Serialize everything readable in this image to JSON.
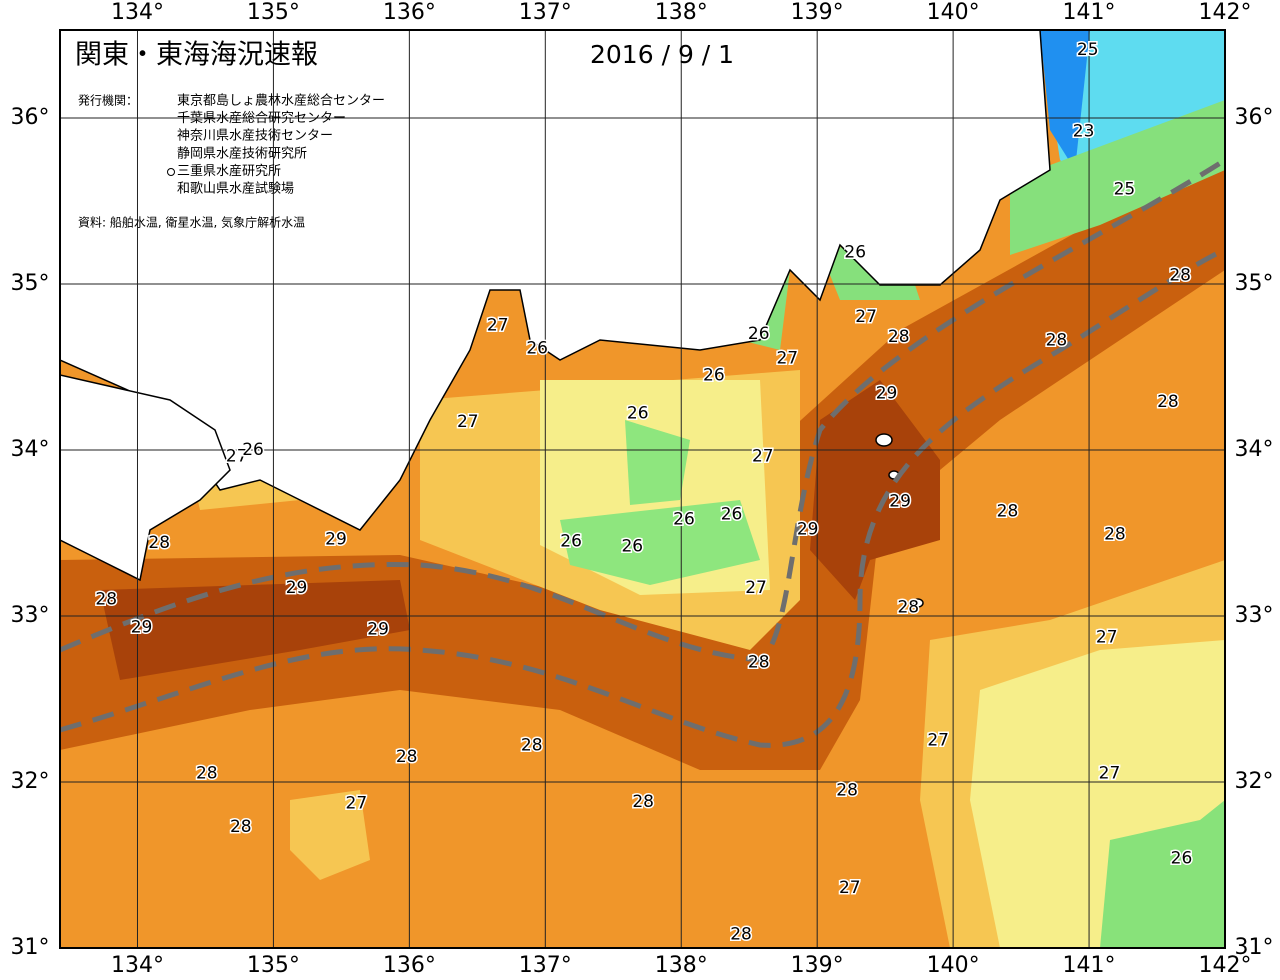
{
  "header": {
    "title": "関東・東海海況速報",
    "date": "2016 / 9 / 1",
    "publisher_label": "発行機関：",
    "publishers": [
      "東京都島しょ農林水産総合センター",
      "千葉県水産総合研究センター",
      "神奈川県水産技術センター",
      "静岡県水産技術研究所",
      "三重県水産研究所",
      "和歌山県水産試験場"
    ],
    "source": "資料: 船舶水温, 衛星水温, 気象庁解析水温"
  },
  "map": {
    "lon_range": [
      133.43,
      142
    ],
    "lat_range": [
      31,
      36.53
    ],
    "lon_ticks": [
      {
        "value": 134,
        "label": "134°"
      },
      {
        "value": 135,
        "label": "135°"
      },
      {
        "value": 136,
        "label": "136°"
      },
      {
        "value": 137,
        "label": "137°"
      },
      {
        "value": 138,
        "label": "138°"
      },
      {
        "value": 139,
        "label": "139°"
      },
      {
        "value": 140,
        "label": "140°"
      },
      {
        "value": 141,
        "label": "141°"
      },
      {
        "value": 142,
        "label": "142°"
      }
    ],
    "lat_ticks": [
      {
        "value": 31,
        "label": "31°"
      },
      {
        "value": 32,
        "label": "32°"
      },
      {
        "value": 33,
        "label": "33°"
      },
      {
        "value": 34,
        "label": "34°"
      },
      {
        "value": 35,
        "label": "35°"
      },
      {
        "value": 36,
        "label": "36°"
      }
    ],
    "temperature_labels": [
      {
        "value": 25,
        "lon": 140.99,
        "lat": 36.41
      },
      {
        "value": 23,
        "lon": 140.96,
        "lat": 35.92
      },
      {
        "value": 25,
        "lon": 141.26,
        "lat": 35.57
      },
      {
        "value": 26,
        "lon": 139.28,
        "lat": 35.19
      },
      {
        "value": 28,
        "lon": 141.67,
        "lat": 35.05
      },
      {
        "value": 27,
        "lon": 136.65,
        "lat": 34.75
      },
      {
        "value": 26,
        "lon": 136.94,
        "lat": 34.61
      },
      {
        "value": 27,
        "lon": 139.36,
        "lat": 34.8
      },
      {
        "value": 26,
        "lon": 138.57,
        "lat": 34.7
      },
      {
        "value": 28,
        "lon": 139.6,
        "lat": 34.68
      },
      {
        "value": 27,
        "lon": 138.78,
        "lat": 34.55
      },
      {
        "value": 28,
        "lon": 140.76,
        "lat": 34.66
      },
      {
        "value": 26,
        "lon": 138.24,
        "lat": 34.45
      },
      {
        "value": 29,
        "lon": 139.51,
        "lat": 34.34
      },
      {
        "value": 28,
        "lon": 141.58,
        "lat": 34.29
      },
      {
        "value": 26,
        "lon": 137.68,
        "lat": 34.22
      },
      {
        "value": 27,
        "lon": 136.43,
        "lat": 34.17
      },
      {
        "value": 27,
        "lon": 134.73,
        "lat": 33.96
      },
      {
        "value": 26,
        "lon": 134.85,
        "lat": 34.0
      },
      {
        "value": 27,
        "lon": 138.6,
        "lat": 33.96
      },
      {
        "value": 29,
        "lon": 139.61,
        "lat": 33.69
      },
      {
        "value": 28,
        "lon": 140.4,
        "lat": 33.63
      },
      {
        "value": 26,
        "lon": 138.37,
        "lat": 33.61
      },
      {
        "value": 26,
        "lon": 138.02,
        "lat": 33.58
      },
      {
        "value": 29,
        "lon": 138.93,
        "lat": 33.52
      },
      {
        "value": 28,
        "lon": 141.19,
        "lat": 33.49
      },
      {
        "value": 28,
        "lon": 134.16,
        "lat": 33.44
      },
      {
        "value": 29,
        "lon": 135.46,
        "lat": 33.46
      },
      {
        "value": 26,
        "lon": 137.19,
        "lat": 33.45
      },
      {
        "value": 26,
        "lon": 137.64,
        "lat": 33.42
      },
      {
        "value": 29,
        "lon": 135.17,
        "lat": 33.17
      },
      {
        "value": 27,
        "lon": 138.55,
        "lat": 33.17
      },
      {
        "value": 28,
        "lon": 133.77,
        "lat": 33.1
      },
      {
        "value": 28,
        "lon": 139.67,
        "lat": 33.05
      },
      {
        "value": 29,
        "lon": 134.03,
        "lat": 32.93
      },
      {
        "value": 29,
        "lon": 135.77,
        "lat": 32.92
      },
      {
        "value": 27,
        "lon": 141.13,
        "lat": 32.87
      },
      {
        "value": 28,
        "lon": 138.57,
        "lat": 32.72
      },
      {
        "value": 27,
        "lon": 139.89,
        "lat": 32.25
      },
      {
        "value": 28,
        "lon": 136.9,
        "lat": 32.22
      },
      {
        "value": 28,
        "lon": 135.98,
        "lat": 32.15
      },
      {
        "value": 28,
        "lon": 134.51,
        "lat": 32.05
      },
      {
        "value": 27,
        "lon": 141.15,
        "lat": 32.05
      },
      {
        "value": 28,
        "lon": 139.22,
        "lat": 31.95
      },
      {
        "value": 28,
        "lon": 137.72,
        "lat": 31.88
      },
      {
        "value": 27,
        "lon": 135.61,
        "lat": 31.87
      },
      {
        "value": 28,
        "lon": 134.76,
        "lat": 31.73
      },
      {
        "value": 26,
        "lon": 141.68,
        "lat": 31.54
      },
      {
        "value": 27,
        "lon": 139.24,
        "lat": 31.36
      },
      {
        "value": 28,
        "lon": 138.44,
        "lat": 31.08
      }
    ]
  }
}
